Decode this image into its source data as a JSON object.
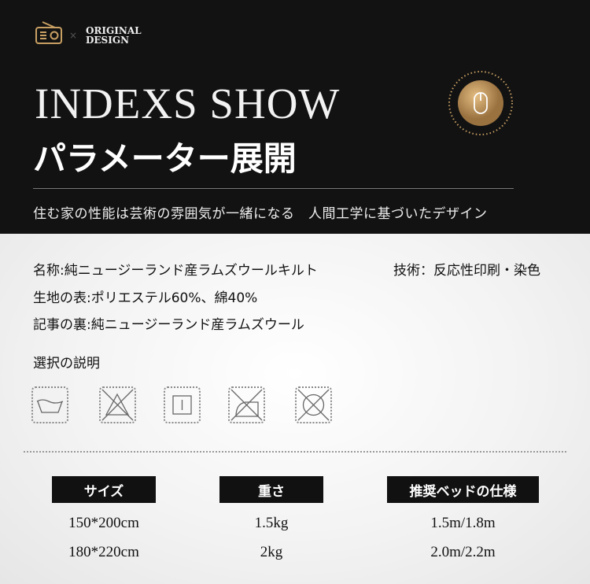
{
  "header": {
    "logo_text_1": "ORIGINAL",
    "logo_text_2": "DESIGN",
    "times": "×",
    "title_en": "INDEXS SHOW",
    "title_jp": "パラメーター展開",
    "subtitle": "住む家の性能は芸術の雰囲気が一緒になる　人間工学に基づいたデザイン",
    "accent": "#c9a063"
  },
  "specs": {
    "name": "名称:純ニュージーランド産ラムズウールキルト",
    "tech": "技術：反応性印刷・染色",
    "surface": "生地の表:ポリエステル60%、綿40%",
    "back": "記事の裏:純ニュージーランド産ラムズウール",
    "care_title": "選択の説明",
    "care_icons": [
      "hand-wash-icon",
      "no-bleach-icon",
      "tumble-dry-icon",
      "no-iron-icon",
      "no-dry-clean-icon"
    ]
  },
  "table": {
    "headers": [
      "サイズ",
      "重さ",
      "推奨ベッドの仕様"
    ],
    "rows": [
      [
        "150*200cm",
        "1.5kg",
        "1.5m/1.8m"
      ],
      [
        "180*220cm",
        "2kg",
        "2.0m/2.2m"
      ]
    ]
  }
}
